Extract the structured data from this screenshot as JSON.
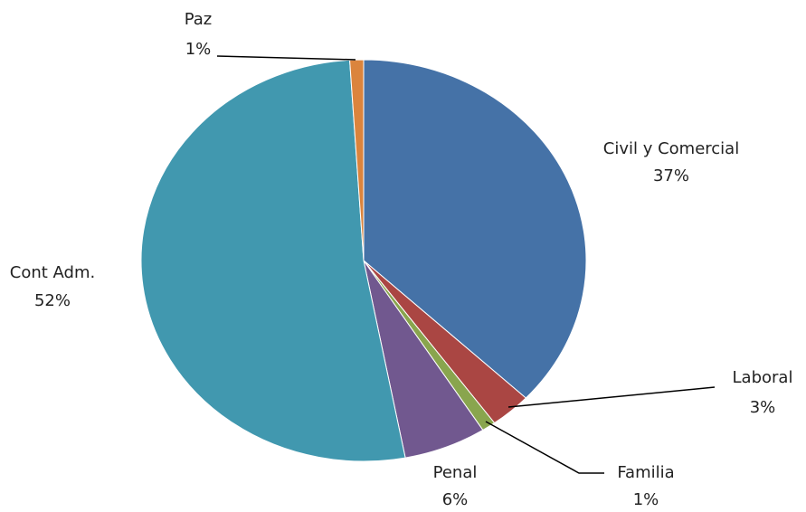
{
  "chart_data": {
    "type": "pie",
    "categories": [
      "Civil y Comercial",
      "Laboral",
      "Familia",
      "Penal",
      "Cont Adm.",
      "Paz"
    ],
    "values": [
      37,
      3,
      1,
      6,
      52,
      1
    ],
    "value_labels": [
      "37%",
      "3%",
      "1%",
      "6%",
      "52%",
      "1%"
    ],
    "colors": [
      "#4572a7",
      "#aa4643",
      "#89a54e",
      "#71588f",
      "#4198af",
      "#db843d"
    ]
  }
}
